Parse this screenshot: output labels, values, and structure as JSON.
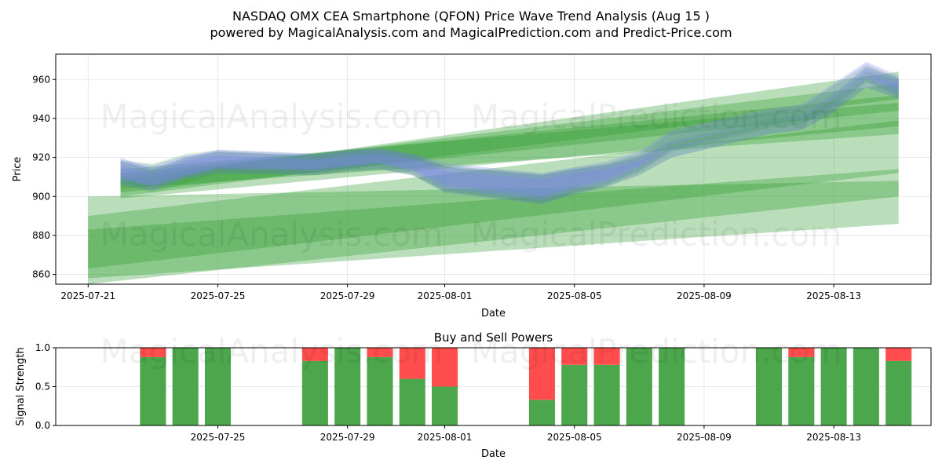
{
  "title_line1": "NASDAQ OMX CEA Smartphone (QFON) Price Wave Trend Analysis (Aug 15 )",
  "title_line2": "powered by MagicalAnalysis.com and MagicalPrediction.com and Predict-Price.com",
  "watermarks": [
    "MagicalAnalysis.com",
    "MagicalPrediction.com"
  ],
  "colors": {
    "buy": "#4ca64c",
    "sell": "#ff4c4c",
    "green_band": "#2e9a2e",
    "blue_band": "#8080ff"
  },
  "chart_data": [
    {
      "type": "area",
      "title": "",
      "xlabel": "Date",
      "ylabel": "Price",
      "x_ticks": [
        "2025-07-21",
        "2025-07-25",
        "2025-07-29",
        "2025-08-01",
        "2025-08-05",
        "2025-08-09",
        "2025-08-13"
      ],
      "y_ticks": [
        860,
        880,
        900,
        920,
        940,
        960
      ],
      "xlim": [
        "2025-07-20",
        "2025-08-16"
      ],
      "ylim": [
        855,
        973
      ],
      "grid": true,
      "blue_bands": [
        {
          "dates": [
            "2025-07-22",
            "2025-07-23",
            "2025-07-24",
            "2025-07-25",
            "2025-07-28",
            "2025-07-29",
            "2025-07-30",
            "2025-07-31",
            "2025-08-01",
            "2025-08-04",
            "2025-08-05",
            "2025-08-06",
            "2025-08-07",
            "2025-08-08",
            "2025-08-11",
            "2025-08-12",
            "2025-08-13",
            "2025-08-14",
            "2025-08-15"
          ],
          "upper": [
            918,
            916,
            921,
            923,
            921,
            923,
            924,
            921,
            915,
            911,
            914,
            916,
            920,
            928,
            939,
            941,
            952,
            966,
            960
          ],
          "lower": [
            908,
            906,
            911,
            914,
            913,
            915,
            917,
            913,
            904,
            898,
            903,
            907,
            914,
            924,
            936,
            938,
            946,
            960,
            952
          ]
        },
        {
          "dates": [
            "2025-07-22",
            "2025-07-23",
            "2025-07-24",
            "2025-07-25",
            "2025-07-28",
            "2025-07-29",
            "2025-07-30",
            "2025-07-31",
            "2025-08-01",
            "2025-08-04",
            "2025-08-05",
            "2025-08-06",
            "2025-08-07",
            "2025-08-08",
            "2025-08-11",
            "2025-08-12",
            "2025-08-13",
            "2025-08-14",
            "2025-08-15"
          ],
          "upper": [
            920,
            914,
            920,
            924,
            922,
            924,
            925,
            922,
            917,
            912,
            915,
            918,
            923,
            934,
            945,
            947,
            958,
            969,
            962
          ],
          "lower": [
            910,
            905,
            910,
            915,
            914,
            916,
            917,
            914,
            906,
            900,
            905,
            909,
            916,
            927,
            939,
            940,
            950,
            962,
            955
          ]
        },
        {
          "dates": [
            "2025-07-22",
            "2025-07-23",
            "2025-07-24",
            "2025-07-25",
            "2025-07-28",
            "2025-07-29",
            "2025-07-30",
            "2025-07-31",
            "2025-08-01",
            "2025-08-04",
            "2025-08-05",
            "2025-08-06",
            "2025-08-07",
            "2025-08-08",
            "2025-08-11",
            "2025-08-12",
            "2025-08-13",
            "2025-08-14",
            "2025-08-15"
          ],
          "upper": [
            916,
            912,
            918,
            921,
            919,
            921,
            922,
            919,
            913,
            909,
            912,
            914,
            918,
            925,
            936,
            938,
            948,
            962,
            958
          ],
          "lower": [
            906,
            903,
            909,
            912,
            911,
            913,
            914,
            911,
            902,
            896,
            901,
            905,
            911,
            920,
            932,
            934,
            943,
            956,
            950
          ]
        }
      ],
      "green_bands": [
        {
          "start": "2025-07-21",
          "end": "2025-08-15",
          "start_upper": 900,
          "start_lower": 858,
          "end_upper": 908,
          "end_lower": 886
        },
        {
          "start": "2025-07-21",
          "end": "2025-08-15",
          "start_upper": 890,
          "start_lower": 863,
          "end_upper": 939,
          "end_lower": 912
        },
        {
          "start": "2025-07-21",
          "end": "2025-08-15",
          "start_upper": 883,
          "start_lower": 855,
          "end_upper": 914,
          "end_lower": 900
        },
        {
          "start": "2025-07-22",
          "end": "2025-08-15",
          "start_upper": 912,
          "start_lower": 899,
          "end_upper": 952,
          "end_lower": 936
        },
        {
          "start": "2025-07-22",
          "end": "2025-08-15",
          "start_upper": 910,
          "start_lower": 902,
          "end_upper": 958,
          "end_lower": 944
        },
        {
          "start": "2025-07-22",
          "end": "2025-08-15",
          "start_upper": 908,
          "start_lower": 900,
          "end_upper": 964,
          "end_lower": 950
        },
        {
          "start": "2025-07-22",
          "end": "2025-08-15",
          "start_upper": 914,
          "start_lower": 904,
          "end_upper": 948,
          "end_lower": 932
        }
      ]
    },
    {
      "type": "bar",
      "title": "Buy and Sell Powers",
      "xlabel": "Date",
      "ylabel": "Signal Strength",
      "x_ticks": [
        "2025-07-25",
        "2025-07-29",
        "2025-08-01",
        "2025-08-05",
        "2025-08-09",
        "2025-08-13"
      ],
      "y_ticks": [
        "0.0",
        "0.5",
        "1.0"
      ],
      "ylim": [
        0,
        1
      ],
      "series": [
        {
          "name": "Buy",
          "dates": [
            "2025-07-23",
            "2025-07-24",
            "2025-07-25",
            "2025-07-28",
            "2025-07-29",
            "2025-07-30",
            "2025-07-31",
            "2025-08-01",
            "2025-08-04",
            "2025-08-05",
            "2025-08-06",
            "2025-08-07",
            "2025-08-08",
            "2025-08-11",
            "2025-08-12",
            "2025-08-13",
            "2025-08-14",
            "2025-08-15"
          ],
          "values": [
            0.88,
            1.0,
            1.0,
            0.83,
            1.0,
            0.88,
            0.6,
            0.5,
            0.33,
            0.78,
            0.78,
            1.0,
            1.0,
            1.0,
            0.88,
            1.0,
            1.0,
            0.83
          ]
        },
        {
          "name": "Sell",
          "dates": [
            "2025-07-23",
            "2025-07-24",
            "2025-07-25",
            "2025-07-28",
            "2025-07-29",
            "2025-07-30",
            "2025-07-31",
            "2025-08-01",
            "2025-08-04",
            "2025-08-05",
            "2025-08-06",
            "2025-08-07",
            "2025-08-08",
            "2025-08-11",
            "2025-08-12",
            "2025-08-13",
            "2025-08-14",
            "2025-08-15"
          ],
          "values": [
            0.12,
            0.0,
            0.0,
            0.17,
            0.0,
            0.12,
            0.4,
            0.5,
            0.67,
            0.22,
            0.22,
            0.0,
            0.0,
            0.0,
            0.12,
            0.0,
            0.0,
            0.17
          ]
        }
      ]
    }
  ]
}
